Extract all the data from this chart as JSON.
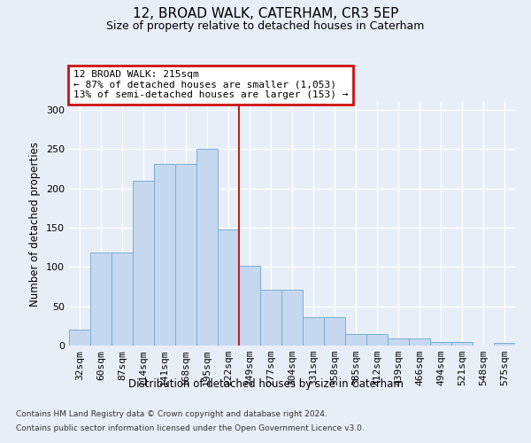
{
  "title1": "12, BROAD WALK, CATERHAM, CR3 5EP",
  "title2": "Size of property relative to detached houses in Caterham",
  "xlabel": "Distribution of detached houses by size in Caterham",
  "ylabel": "Number of detached properties",
  "categories": [
    "32sqm",
    "60sqm",
    "87sqm",
    "114sqm",
    "141sqm",
    "168sqm",
    "195sqm",
    "222sqm",
    "249sqm",
    "277sqm",
    "304sqm",
    "331sqm",
    "358sqm",
    "385sqm",
    "412sqm",
    "439sqm",
    "466sqm",
    "494sqm",
    "521sqm",
    "548sqm",
    "575sqm"
  ],
  "values": [
    20,
    118,
    118,
    210,
    231,
    231,
    250,
    148,
    101,
    71,
    71,
    36,
    36,
    15,
    15,
    9,
    9,
    4,
    4,
    0,
    3
  ],
  "bar_color": "#c5d8f0",
  "bar_edge_color": "#7aadd4",
  "vline_x": 7.5,
  "vline_color": "#bb2222",
  "annotation_text": "12 BROAD WALK: 215sqm\n← 87% of detached houses are smaller (1,053)\n13% of semi-detached houses are larger (153) →",
  "annotation_box_color": "#cc1111",
  "annotation_bg": "white",
  "footer1": "Contains HM Land Registry data © Crown copyright and database right 2024.",
  "footer2": "Contains public sector information licensed under the Open Government Licence v3.0.",
  "bg_color": "#e8eef8",
  "plot_bg_color": "#e8eef8",
  "ylim": [
    0,
    310
  ],
  "yticks": [
    0,
    50,
    100,
    150,
    200,
    250,
    300
  ]
}
